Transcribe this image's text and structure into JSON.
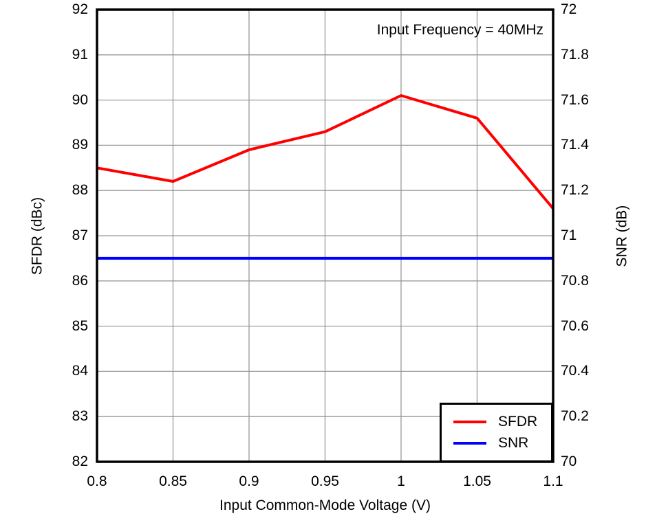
{
  "chart_data": {
    "type": "line",
    "title": "",
    "annotation": "Input Frequency = 40MHz",
    "xlabel": "Input Common-Mode Voltage (V)",
    "ylabel_left": "SFDR (dBc)",
    "ylabel_right": "SNR (dB)",
    "xlim": [
      0.8,
      1.1
    ],
    "ylim_left": [
      82,
      92
    ],
    "ylim_right": [
      70,
      72
    ],
    "grid": true,
    "legend_position": "inside-bottom-right",
    "x": [
      0.8,
      0.85,
      0.9,
      0.95,
      1,
      1.05,
      1.1
    ],
    "x_ticks": [
      {
        "label": "0.8",
        "value": 0.8
      },
      {
        "label": "0.85",
        "value": 0.85
      },
      {
        "label": "0.9",
        "value": 0.9
      },
      {
        "label": "0.95",
        "value": 0.95
      },
      {
        "label": "1",
        "value": 1
      },
      {
        "label": "1.05",
        "value": 1.05
      },
      {
        "label": "1.1",
        "value": 1.1
      }
    ],
    "y_ticks_left": [
      {
        "label": "82",
        "value": 82
      },
      {
        "label": "83",
        "value": 83
      },
      {
        "label": "84",
        "value": 84
      },
      {
        "label": "85",
        "value": 85
      },
      {
        "label": "86",
        "value": 86
      },
      {
        "label": "87",
        "value": 87
      },
      {
        "label": "88",
        "value": 88
      },
      {
        "label": "89",
        "value": 89
      },
      {
        "label": "90",
        "value": 90
      },
      {
        "label": "91",
        "value": 91
      },
      {
        "label": "92",
        "value": 92
      }
    ],
    "y_ticks_right": [
      {
        "label": "70",
        "value": 70
      },
      {
        "label": "70.2",
        "value": 70.2
      },
      {
        "label": "70.4",
        "value": 70.4
      },
      {
        "label": "70.6",
        "value": 70.6
      },
      {
        "label": "70.8",
        "value": 70.8
      },
      {
        "label": "71",
        "value": 71
      },
      {
        "label": "71.2",
        "value": 71.2
      },
      {
        "label": "71.4",
        "value": 71.4
      },
      {
        "label": "71.6",
        "value": 71.6
      },
      {
        "label": "71.8",
        "value": 71.8
      },
      {
        "label": "72",
        "value": 72
      }
    ],
    "series": [
      {
        "name": "SFDR",
        "axis": "left",
        "color": "#FF0000",
        "values": [
          88.5,
          88.2,
          88.9,
          89.3,
          90.1,
          89.6,
          87.6
        ]
      },
      {
        "name": "SNR",
        "axis": "right",
        "color": "#0000FF",
        "values": [
          70.9,
          70.9,
          70.9,
          70.9,
          70.9,
          70.9,
          70.9
        ]
      }
    ]
  },
  "colors": {
    "grid": "#999999",
    "frame": "#000000",
    "text": "#000000",
    "background": "#FFFFFF"
  }
}
